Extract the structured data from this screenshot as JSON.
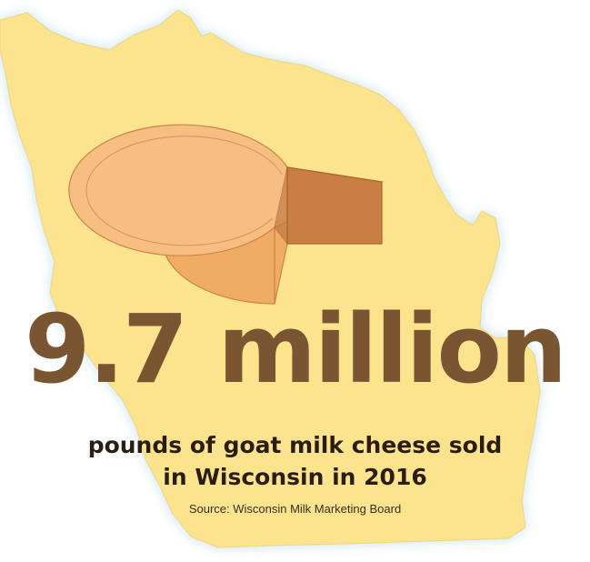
{
  "stat": {
    "value": "9.7 million",
    "description_line1": "pounds of goat milk cheese sold",
    "description_line2": "in Wisconsin in 2016",
    "source": "Source: Wisconsin Milk Marketing Board"
  },
  "colors": {
    "map_fill": "#fce48f",
    "map_glow": "#c9e3f3",
    "number": "#7a5532",
    "cheese_light": "#f3b36d",
    "cheese_dark": "#d98c4b",
    "cheese_cut": "#c57a3f"
  },
  "icons": {
    "map": "wisconsin-state-map",
    "cheese": "cheese-wheel-icon"
  }
}
